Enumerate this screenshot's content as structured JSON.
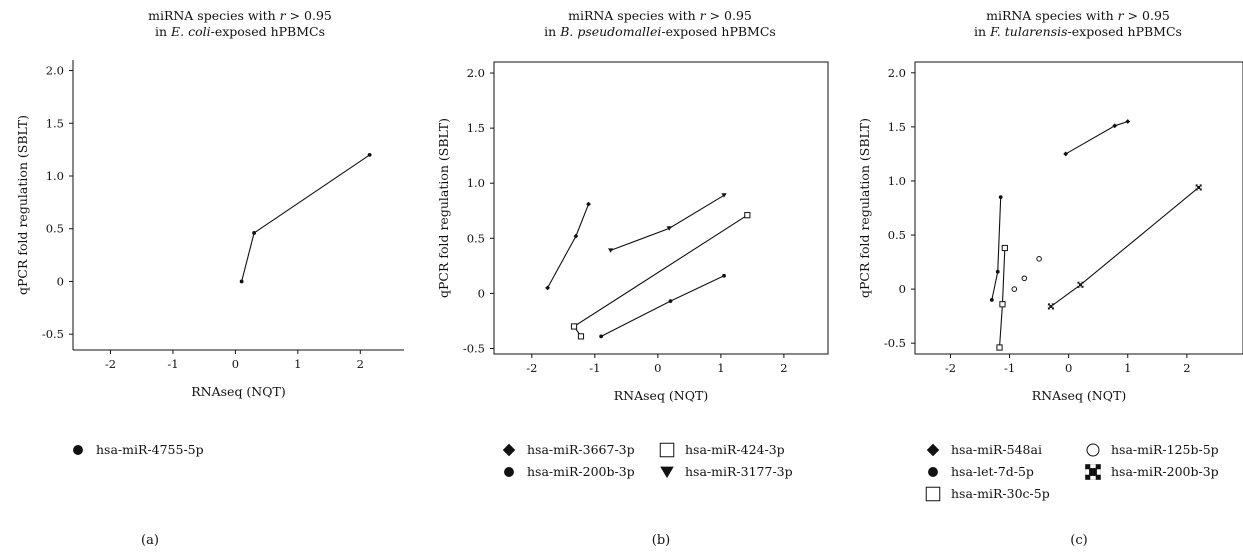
{
  "chart_data": [
    {
      "type": "line",
      "title": [
        "miRNA species with r > 0.95",
        "in E. coli-exposed hPBMCs"
      ],
      "xlabel": "RNAseq (NQT)",
      "ylabel": "qPCR fold regulation (SBLT)",
      "xlim": [
        -2.6,
        2.7
      ],
      "ylim": [
        -0.65,
        2.1
      ],
      "xticks": [
        -2,
        -1,
        0,
        1,
        2
      ],
      "yticks": [
        2.0,
        1.5,
        1.0,
        0.5,
        0,
        -0.5
      ],
      "xtick_labels": [
        "-2",
        "-1",
        "0",
        "1",
        "2"
      ],
      "ytick_labels": [
        "2.0",
        "1.5",
        "1.0",
        "0.5",
        "0",
        "-0.5"
      ],
      "series": [
        {
          "name": "hsa-miR-4755-5p",
          "marker": "circle",
          "x": [
            0.1,
            0.3,
            2.15
          ],
          "y": [
            0.0,
            0.46,
            1.2
          ]
        }
      ],
      "legend": [
        {
          "marker": "circle",
          "label": "hsa-miR-4755-5p"
        }
      ],
      "panel_label": "(a)"
    },
    {
      "type": "line",
      "title": [
        "miRNA species with r > 0.95",
        "in B. pseudomallei-exposed hPBMCs"
      ],
      "xlabel": "RNAseq (NQT)",
      "ylabel": "qPCR fold regulation (SBLT)",
      "xlim": [
        -2.6,
        2.7
      ],
      "ylim": [
        -0.55,
        2.1
      ],
      "xticks": [
        -2,
        -1,
        0,
        1,
        2
      ],
      "yticks": [
        2.0,
        1.5,
        1.0,
        0.5,
        0,
        -0.5
      ],
      "xtick_labels": [
        "-2",
        "-1",
        "0",
        "1",
        "2"
      ],
      "ytick_labels": [
        "2.0",
        "1.5",
        "1.0",
        "0.5",
        "0",
        "-0.5"
      ],
      "series": [
        {
          "name": "hsa-miR-3667-3p",
          "marker": "diamond",
          "x": [
            -1.75,
            -1.3,
            -1.1
          ],
          "y": [
            0.05,
            0.52,
            0.81
          ]
        },
        {
          "name": "hsa-miR-200b-3p",
          "marker": "circle",
          "x": [
            -0.9,
            0.2,
            1.05
          ],
          "y": [
            -0.39,
            -0.07,
            0.16
          ]
        },
        {
          "name": "hsa-miR-424-3p",
          "marker": "square",
          "x": [
            -1.22,
            -1.33,
            1.42
          ],
          "y": [
            -0.39,
            -0.3,
            0.71
          ]
        },
        {
          "name": "hsa-miR-3177-3p",
          "marker": "triangle",
          "x": [
            -0.75,
            0.18,
            1.05
          ],
          "y": [
            0.39,
            0.59,
            0.89
          ]
        }
      ],
      "legend": [
        {
          "marker": "diamond",
          "label": "hsa-miR-3667-3p"
        },
        {
          "marker": "square",
          "label": "hsa-miR-424-3p"
        },
        {
          "marker": "circle",
          "label": "hsa-miR-200b-3p"
        },
        {
          "marker": "triangle",
          "label": "hsa-miR-3177-3p"
        }
      ],
      "panel_label": "(b)"
    },
    {
      "type": "line",
      "title": [
        "miRNA species with r > 0.95",
        "in F. tularensis-exposed hPBMCs"
      ],
      "xlabel": "RNAseq (NQT)",
      "ylabel": "qPCR fold regulation (SBLT)",
      "xlim": [
        -2.6,
        2.95
      ],
      "ylim": [
        -0.6,
        2.1
      ],
      "xticks": [
        -2,
        -1,
        0,
        1,
        2
      ],
      "yticks": [
        2.0,
        1.5,
        1.0,
        0.5,
        0,
        -0.5
      ],
      "xtick_labels": [
        "-2",
        "-1",
        "0",
        "1",
        "2"
      ],
      "ytick_labels": [
        "2.0",
        "1.5",
        "1.0",
        "0.5",
        "0",
        "-0.5"
      ],
      "series": [
        {
          "name": "hsa-miR-548ai",
          "marker": "diamond",
          "x": [
            -0.05,
            0.78,
            1.0
          ],
          "y": [
            1.25,
            1.51,
            1.55
          ]
        },
        {
          "name": "hsa-let-7d-5p",
          "marker": "circle",
          "x": [
            -1.3,
            -1.2,
            -1.15
          ],
          "y": [
            -0.1,
            0.16,
            0.85
          ]
        },
        {
          "name": "hsa-miR-30c-5p",
          "marker": "square",
          "x": [
            -1.17,
            -1.12,
            -1.08
          ],
          "y": [
            -0.54,
            -0.14,
            0.38
          ]
        },
        {
          "name": "hsa-miR-125b-5p",
          "marker": "open-circle",
          "line": false,
          "x": [
            -0.92,
            -0.75,
            -0.5
          ],
          "y": [
            0.0,
            0.1,
            0.28
          ]
        },
        {
          "name": "hsa-miR-200b-3p",
          "marker": "cross-square",
          "x": [
            -0.3,
            0.2,
            2.2
          ],
          "y": [
            -0.16,
            0.04,
            0.94
          ]
        }
      ],
      "legend": [
        {
          "marker": "diamond",
          "label": "hsa-miR-548ai"
        },
        {
          "marker": "open-circle",
          "label": "hsa-miR-125b-5p"
        },
        {
          "marker": "circle",
          "label": "hsa-let-7d-5p"
        },
        {
          "marker": "cross-square",
          "label": "hsa-miR-200b-3p"
        },
        {
          "marker": "square",
          "label": "hsa-miR-30c-5p"
        }
      ],
      "panel_label": "(c)"
    }
  ]
}
